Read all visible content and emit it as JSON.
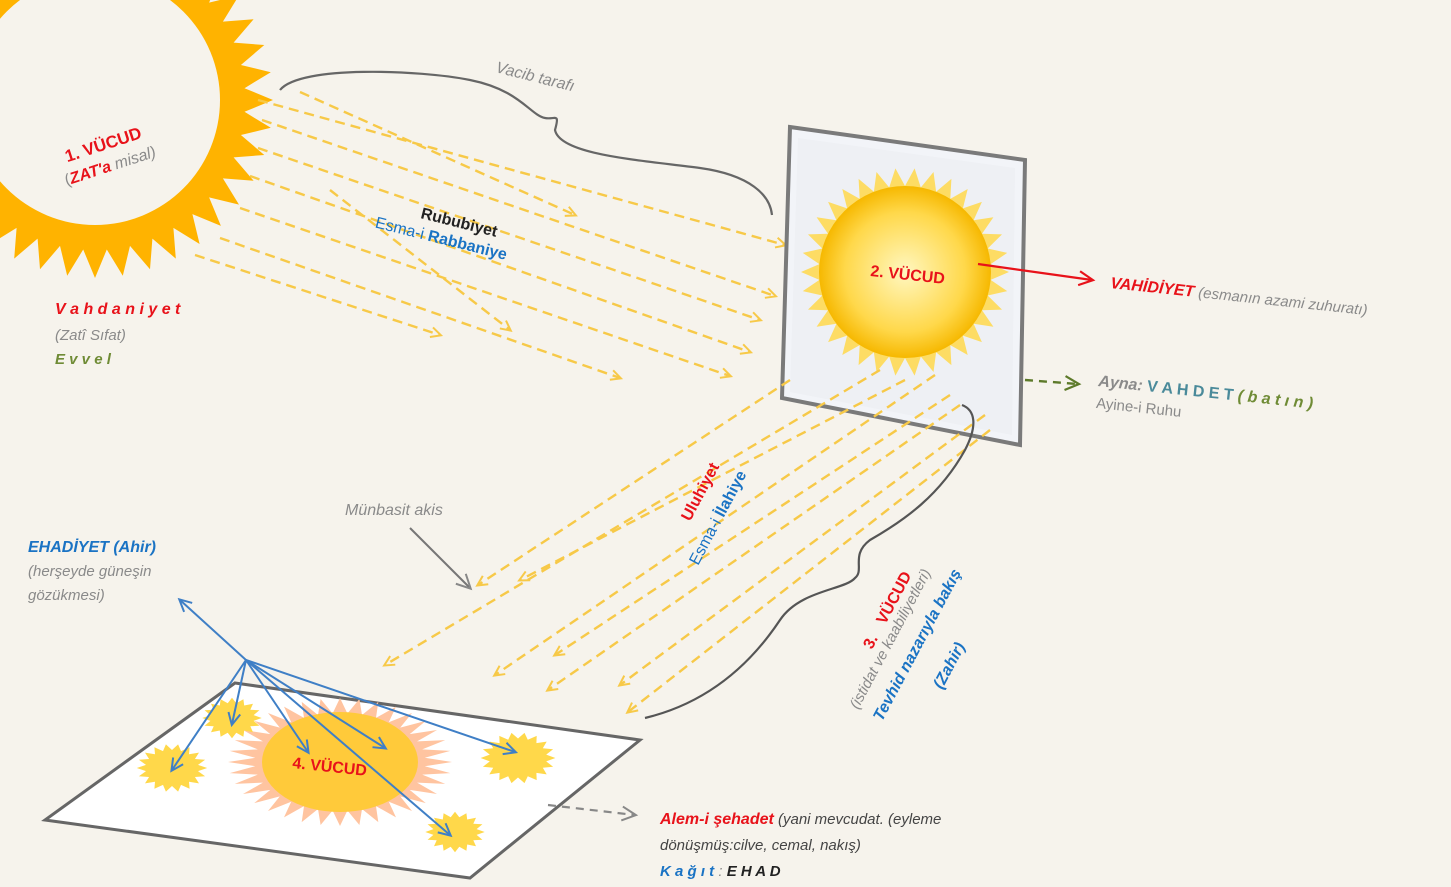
{
  "sun1": {
    "num": "1. VÜCUD",
    "open": "(",
    "zat": "ZAT'a",
    "misal": " misal)"
  },
  "vacib": "Vacib tarafı",
  "rububiyet": {
    "title": "Rububiyet",
    "esma_prefix": "Esma-i ",
    "esma_name": "Rabbaniye"
  },
  "vahdaniyet": {
    "title": "V a h d a n i y e t",
    "sub": "(Zatî Sıfat)",
    "evvel": "E v v e l"
  },
  "sun2": {
    "label": "2.  VÜCUD"
  },
  "vahidiyet": {
    "title": "VAHİDİYET",
    "desc": " (esmanın  azami zuhuratı)"
  },
  "ayna": {
    "label": "Ayna: ",
    "vahdet": "V A H D E T  ",
    "batin": "( b a t ı n )",
    "ruhu": "Ayine-i Ruhu"
  },
  "uluhiyet": {
    "title": "Uluhiyet",
    "esma_prefix": "Esma-i ",
    "esma_name": "İlahiye"
  },
  "munbasit": "Münbasit akis",
  "ehadiyet": {
    "title": "EHADİYET (Ahir)",
    "line1": "(herşeyde güneşin",
    "line2": "gözükmesi)"
  },
  "vucud3": {
    "num": "3.",
    "word": "VÜCUD",
    "istidat": "(istidat ve kaabiliyetleri)",
    "tevhid": "Tevhid nazarıyla bakış",
    "zahir": "(Zahir)"
  },
  "sun4": {
    "label": "4. VÜCUD"
  },
  "alem": {
    "title": "Alem-i şehadet",
    "desc1": "  (yani mevcudat. (eyleme",
    "desc2": "dönüşmüş:cilve, cemal, nakış)",
    "kagit": "K a ğ ı t",
    "colon": " :  ",
    "ehad": "E H A D"
  },
  "colors": {
    "sun_orange": "#ffb300",
    "sun_yellow": "#ffd84a",
    "ray": "#f7c948",
    "mirror_frame": "#7a7a7a",
    "blue_arrow": "#3f7fc6",
    "red_arrow": "#e8121a",
    "green_arrow": "#5d7a2a"
  }
}
